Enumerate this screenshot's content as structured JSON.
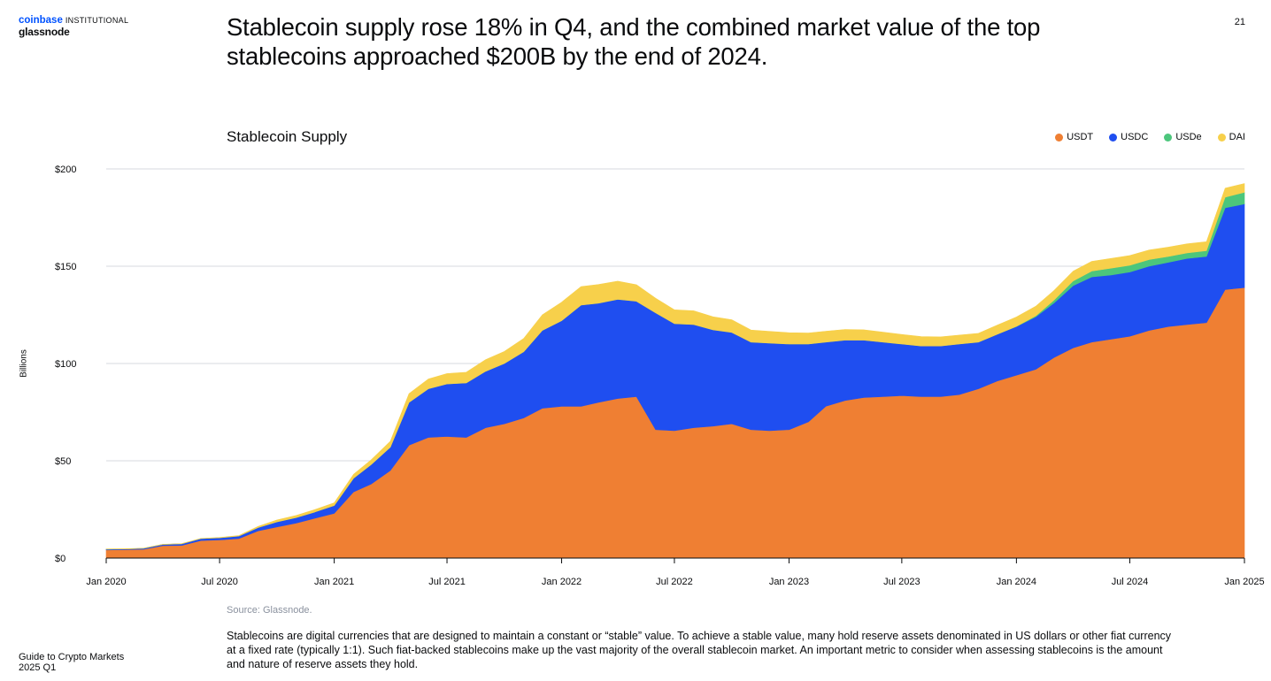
{
  "brand": {
    "coinbase": "coinbase",
    "institutional": "INSTITUTIONAL",
    "glassnode": "glassnode"
  },
  "page_number": "21",
  "headline": "Stablecoin supply rose 18% in Q4, and the combined market value of the top stablecoins approached $200B by the end of 2024.",
  "source": "Source: Glassnode.",
  "body_text": "Stablecoins are digital currencies that are designed to maintain a constant or “stable” value. To achieve a stable value, many hold reserve assets denominated in US dollars or other fiat currency at a fixed rate (typically 1:1). Such fiat-backed stablecoins make up the vast majority of the overall stablecoin market. An important metric to consider when assessing stablecoins is the amount and nature of reserve assets they hold.",
  "footer": {
    "line1": "Guide to Crypto Markets",
    "line2": "2025 Q1"
  },
  "chart_data": {
    "type": "area",
    "stacked": true,
    "title": "Stablecoin Supply",
    "ylabel": "Billions",
    "xlabel": "",
    "ylim": [
      0,
      200
    ],
    "xlim": [
      "2020-01-01",
      "2025-01-01"
    ],
    "y_ticks": [
      0,
      50,
      100,
      150,
      200
    ],
    "y_tick_labels": [
      "$0",
      "$50",
      "$100",
      "$150",
      "$200"
    ],
    "x_ticks": [
      "2020-01-01",
      "2020-07-01",
      "2021-01-01",
      "2021-07-01",
      "2022-01-01",
      "2022-07-01",
      "2023-01-01",
      "2023-07-01",
      "2024-01-01",
      "2024-07-01",
      "2025-01-01"
    ],
    "x_tick_labels": [
      "Jan 2020",
      "Jul 2020",
      "Jan 2021",
      "Jul 2021",
      "Jan 2022",
      "Jul 2022",
      "Jan 2023",
      "Jul 2023",
      "Jan 2024",
      "Jul 2024",
      "Jan 2025"
    ],
    "grid": true,
    "legend_position": "top-right",
    "x": [
      "2020-01-01",
      "2020-02-01",
      "2020-03-01",
      "2020-04-01",
      "2020-05-01",
      "2020-06-01",
      "2020-07-01",
      "2020-08-01",
      "2020-09-01",
      "2020-10-01",
      "2020-11-01",
      "2020-12-01",
      "2021-01-01",
      "2021-02-01",
      "2021-03-01",
      "2021-04-01",
      "2021-05-01",
      "2021-06-01",
      "2021-07-01",
      "2021-08-01",
      "2021-09-01",
      "2021-10-01",
      "2021-11-01",
      "2021-12-01",
      "2022-01-01",
      "2022-02-01",
      "2022-03-01",
      "2022-04-01",
      "2022-05-01",
      "2022-06-01",
      "2022-07-01",
      "2022-08-01",
      "2022-09-01",
      "2022-10-01",
      "2022-11-01",
      "2022-12-01",
      "2023-01-01",
      "2023-02-01",
      "2023-03-01",
      "2023-04-01",
      "2023-05-01",
      "2023-06-01",
      "2023-07-01",
      "2023-08-01",
      "2023-09-01",
      "2023-10-01",
      "2023-11-01",
      "2023-12-01",
      "2024-01-01",
      "2024-02-01",
      "2024-03-01",
      "2024-04-01",
      "2024-05-01",
      "2024-06-01",
      "2024-07-01",
      "2024-08-01",
      "2024-09-01",
      "2024-10-01",
      "2024-11-01",
      "2024-12-01",
      "2025-01-01"
    ],
    "series": [
      {
        "name": "USDT",
        "color": "#ef7f33",
        "values": [
          4.2,
          4.3,
          4.5,
          6.4,
          6.5,
          9.0,
          9.3,
          10.0,
          14.0,
          16.0,
          18.0,
          20.5,
          23.0,
          34.0,
          38.0,
          45.0,
          58.0,
          62.0,
          62.5,
          62.0,
          67.0,
          69.0,
          72.0,
          77.0,
          78.0,
          78.0,
          80.0,
          82.0,
          83.0,
          66.0,
          65.5,
          67.0,
          67.8,
          69.0,
          66.0,
          65.5,
          66.0,
          70.0,
          78.0,
          81.0,
          82.5,
          83.0,
          83.5,
          83.0,
          83.0,
          84.0,
          87.0,
          91.0,
          94.0,
          97.0,
          103.0,
          108.0,
          111.0,
          112.5,
          114.0,
          117.0,
          119.0,
          120.0,
          121.0,
          138.0,
          139.0
        ]
      },
      {
        "name": "USDC",
        "color": "#1f4ef0",
        "values": [
          0.4,
          0.4,
          0.5,
          0.6,
          0.8,
          1.0,
          1.1,
          1.3,
          1.7,
          2.6,
          2.8,
          3.2,
          4.0,
          7.0,
          10.0,
          12.0,
          22.0,
          25.0,
          27.0,
          28.0,
          29.0,
          31.0,
          34.0,
          40.0,
          44.0,
          52.0,
          51.0,
          51.0,
          49.0,
          60.0,
          55.0,
          53.0,
          49.5,
          47.0,
          45.0,
          45.0,
          44.0,
          40.0,
          33.0,
          31.0,
          29.5,
          28.0,
          26.5,
          26.0,
          26.0,
          26.0,
          24.0,
          24.0,
          25.0,
          27.0,
          28.0,
          32.0,
          33.5,
          33.0,
          33.0,
          33.0,
          33.0,
          34.0,
          34.0,
          42.0,
          43.0
        ]
      },
      {
        "name": "USDe",
        "color": "#4cc67c",
        "values": [
          0,
          0,
          0,
          0,
          0,
          0,
          0,
          0,
          0,
          0,
          0,
          0,
          0,
          0,
          0,
          0,
          0,
          0,
          0,
          0,
          0,
          0,
          0,
          0,
          0,
          0,
          0,
          0,
          0,
          0,
          0,
          0,
          0,
          0,
          0,
          0,
          0,
          0,
          0,
          0,
          0,
          0,
          0,
          0,
          0,
          0,
          0,
          0,
          0.1,
          0.5,
          1.5,
          2.4,
          3.0,
          3.5,
          3.5,
          3.4,
          3.0,
          2.8,
          3.0,
          5.5,
          6.0
        ]
      },
      {
        "name": "DAI",
        "color": "#f7d04b",
        "values": [
          0.1,
          0.1,
          0.1,
          0.1,
          0.1,
          0.1,
          0.2,
          0.3,
          0.6,
          1.0,
          1.1,
          1.2,
          1.4,
          2.0,
          2.4,
          3.0,
          4.5,
          5.0,
          5.3,
          5.5,
          6.0,
          6.2,
          6.8,
          8.0,
          9.5,
          9.5,
          9.6,
          9.3,
          8.5,
          7.5,
          7.1,
          7.1,
          6.7,
          6.5,
          6.2,
          6.0,
          5.8,
          5.7,
          5.6,
          5.5,
          5.3,
          5.1,
          4.9,
          4.8,
          4.7,
          4.6,
          4.5,
          4.7,
          4.8,
          4.9,
          4.9,
          5.0,
          5.0,
          5.0,
          5.0,
          4.9,
          4.8,
          4.7,
          4.6,
          4.6,
          4.5
        ]
      }
    ]
  }
}
